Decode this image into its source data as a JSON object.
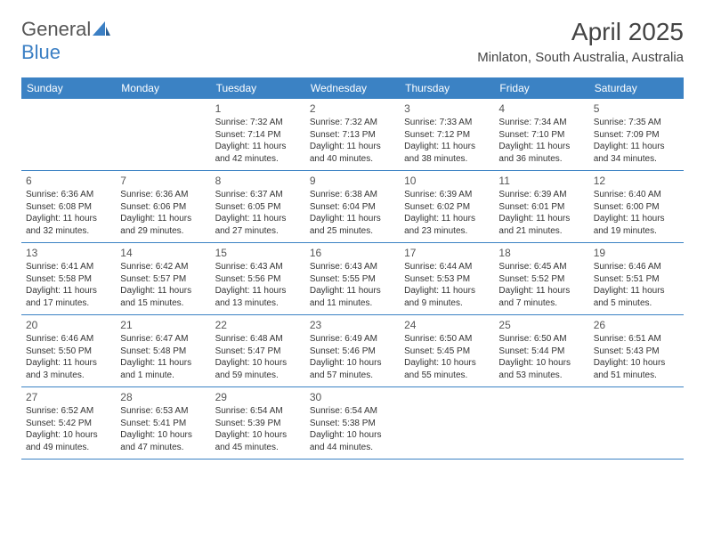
{
  "brand": {
    "part1": "General",
    "part2": "Blue"
  },
  "month_title": "April 2025",
  "location": "Minlaton, South Australia, Australia",
  "colors": {
    "header_bg": "#3b82c4",
    "header_text": "#ffffff",
    "border": "#3b82c4",
    "text": "#333333",
    "muted": "#555555"
  },
  "day_headers": [
    "Sunday",
    "Monday",
    "Tuesday",
    "Wednesday",
    "Thursday",
    "Friday",
    "Saturday"
  ],
  "weeks": [
    [
      {
        "blank": true
      },
      {
        "blank": true
      },
      {
        "n": "1",
        "sr": "7:32 AM",
        "ss": "7:14 PM",
        "dl": "11 hours and 42 minutes."
      },
      {
        "n": "2",
        "sr": "7:32 AM",
        "ss": "7:13 PM",
        "dl": "11 hours and 40 minutes."
      },
      {
        "n": "3",
        "sr": "7:33 AM",
        "ss": "7:12 PM",
        "dl": "11 hours and 38 minutes."
      },
      {
        "n": "4",
        "sr": "7:34 AM",
        "ss": "7:10 PM",
        "dl": "11 hours and 36 minutes."
      },
      {
        "n": "5",
        "sr": "7:35 AM",
        "ss": "7:09 PM",
        "dl": "11 hours and 34 minutes."
      }
    ],
    [
      {
        "n": "6",
        "sr": "6:36 AM",
        "ss": "6:08 PM",
        "dl": "11 hours and 32 minutes."
      },
      {
        "n": "7",
        "sr": "6:36 AM",
        "ss": "6:06 PM",
        "dl": "11 hours and 29 minutes."
      },
      {
        "n": "8",
        "sr": "6:37 AM",
        "ss": "6:05 PM",
        "dl": "11 hours and 27 minutes."
      },
      {
        "n": "9",
        "sr": "6:38 AM",
        "ss": "6:04 PM",
        "dl": "11 hours and 25 minutes."
      },
      {
        "n": "10",
        "sr": "6:39 AM",
        "ss": "6:02 PM",
        "dl": "11 hours and 23 minutes."
      },
      {
        "n": "11",
        "sr": "6:39 AM",
        "ss": "6:01 PM",
        "dl": "11 hours and 21 minutes."
      },
      {
        "n": "12",
        "sr": "6:40 AM",
        "ss": "6:00 PM",
        "dl": "11 hours and 19 minutes."
      }
    ],
    [
      {
        "n": "13",
        "sr": "6:41 AM",
        "ss": "5:58 PM",
        "dl": "11 hours and 17 minutes."
      },
      {
        "n": "14",
        "sr": "6:42 AM",
        "ss": "5:57 PM",
        "dl": "11 hours and 15 minutes."
      },
      {
        "n": "15",
        "sr": "6:43 AM",
        "ss": "5:56 PM",
        "dl": "11 hours and 13 minutes."
      },
      {
        "n": "16",
        "sr": "6:43 AM",
        "ss": "5:55 PM",
        "dl": "11 hours and 11 minutes."
      },
      {
        "n": "17",
        "sr": "6:44 AM",
        "ss": "5:53 PM",
        "dl": "11 hours and 9 minutes."
      },
      {
        "n": "18",
        "sr": "6:45 AM",
        "ss": "5:52 PM",
        "dl": "11 hours and 7 minutes."
      },
      {
        "n": "19",
        "sr": "6:46 AM",
        "ss": "5:51 PM",
        "dl": "11 hours and 5 minutes."
      }
    ],
    [
      {
        "n": "20",
        "sr": "6:46 AM",
        "ss": "5:50 PM",
        "dl": "11 hours and 3 minutes."
      },
      {
        "n": "21",
        "sr": "6:47 AM",
        "ss": "5:48 PM",
        "dl": "11 hours and 1 minute."
      },
      {
        "n": "22",
        "sr": "6:48 AM",
        "ss": "5:47 PM",
        "dl": "10 hours and 59 minutes."
      },
      {
        "n": "23",
        "sr": "6:49 AM",
        "ss": "5:46 PM",
        "dl": "10 hours and 57 minutes."
      },
      {
        "n": "24",
        "sr": "6:50 AM",
        "ss": "5:45 PM",
        "dl": "10 hours and 55 minutes."
      },
      {
        "n": "25",
        "sr": "6:50 AM",
        "ss": "5:44 PM",
        "dl": "10 hours and 53 minutes."
      },
      {
        "n": "26",
        "sr": "6:51 AM",
        "ss": "5:43 PM",
        "dl": "10 hours and 51 minutes."
      }
    ],
    [
      {
        "n": "27",
        "sr": "6:52 AM",
        "ss": "5:42 PM",
        "dl": "10 hours and 49 minutes."
      },
      {
        "n": "28",
        "sr": "6:53 AM",
        "ss": "5:41 PM",
        "dl": "10 hours and 47 minutes."
      },
      {
        "n": "29",
        "sr": "6:54 AM",
        "ss": "5:39 PM",
        "dl": "10 hours and 45 minutes."
      },
      {
        "n": "30",
        "sr": "6:54 AM",
        "ss": "5:38 PM",
        "dl": "10 hours and 44 minutes."
      },
      {
        "blank": true
      },
      {
        "blank": true
      },
      {
        "blank": true
      }
    ]
  ],
  "labels": {
    "sunrise": "Sunrise:",
    "sunset": "Sunset:",
    "daylight": "Daylight:"
  }
}
